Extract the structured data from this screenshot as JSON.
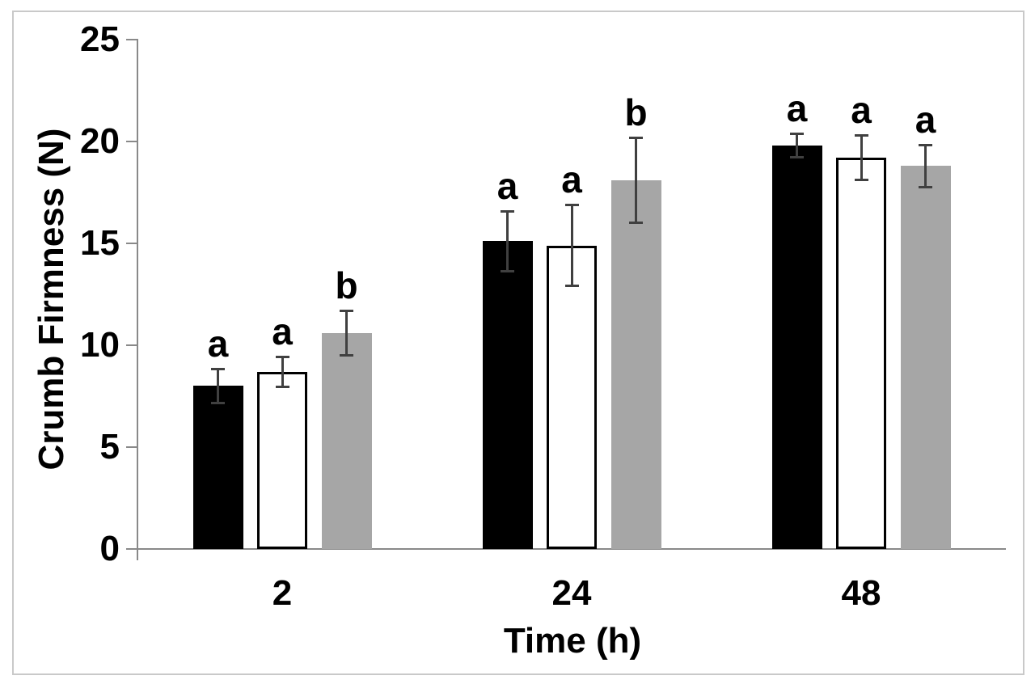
{
  "chart_data": {
    "type": "bar",
    "title": "",
    "xlabel": "Time (h)",
    "ylabel": "Crumb Firmness (N)",
    "categories": [
      "2",
      "24",
      "48"
    ],
    "ylim": [
      0,
      25
    ],
    "yticks": [
      0,
      5,
      10,
      15,
      20,
      25
    ],
    "grid": false,
    "legend_position": "none",
    "series": [
      {
        "name": "black-fill",
        "fill": "#000000",
        "border_color": "#000000",
        "values": [
          8.0,
          15.1,
          19.8
        ],
        "errors": [
          0.85,
          1.5,
          0.6
        ],
        "sig_letters": [
          "a",
          "a",
          "a"
        ]
      },
      {
        "name": "white-fill",
        "fill": "#ffffff",
        "border_color": "#000000",
        "values": [
          8.7,
          14.9,
          19.2
        ],
        "errors": [
          0.75,
          2.0,
          1.1
        ],
        "sig_letters": [
          "a",
          "a",
          "a"
        ]
      },
      {
        "name": "gray-fill",
        "fill": "#a6a6a6",
        "border_color": "#a6a6a6",
        "values": [
          10.6,
          18.1,
          18.8
        ],
        "errors": [
          1.1,
          2.1,
          1.05
        ],
        "sig_letters": [
          "b",
          "b",
          "a"
        ]
      }
    ],
    "colors": {
      "error_bar": "#404040",
      "axis": "#898989",
      "frame_border": "#c9c9c9",
      "text": "#000000",
      "background": "#ffffff"
    }
  }
}
